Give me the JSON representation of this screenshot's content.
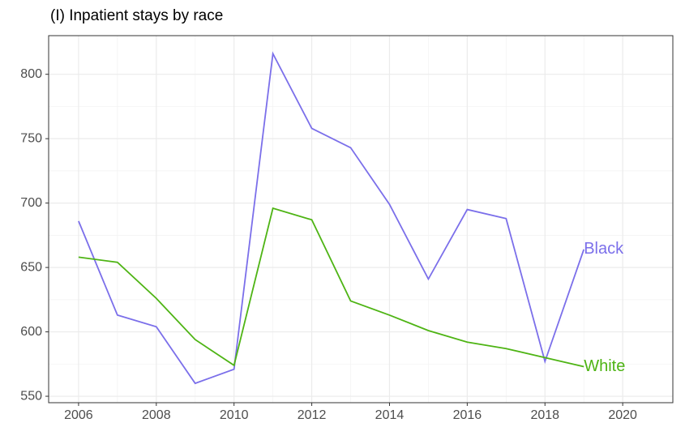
{
  "chart_data": {
    "type": "line",
    "title": "(I) Inpatient stays by race",
    "x": [
      2006,
      2007,
      2008,
      2009,
      2010,
      2011,
      2012,
      2013,
      2014,
      2015,
      2016,
      2017,
      2018,
      2019
    ],
    "series": [
      {
        "name": "Black",
        "color": "#7b6fea",
        "values": [
          686,
          613,
          604,
          560,
          571,
          816,
          758,
          743,
          699,
          641,
          695,
          688,
          577,
          664
        ]
      },
      {
        "name": "White",
        "color": "#4eb414",
        "values": [
          658,
          654,
          626,
          594,
          574,
          696,
          687,
          624,
          613,
          601,
          592,
          587,
          580,
          573
        ]
      }
    ],
    "xlim": [
      2005.23,
      2021.29
    ],
    "xticks": [
      2006,
      2008,
      2010,
      2012,
      2014,
      2016,
      2018,
      2020
    ],
    "ylim": [
      545,
      830
    ],
    "yticks": [
      550,
      600,
      650,
      700,
      750,
      800
    ],
    "grid": true,
    "legend": "end-labels"
  }
}
